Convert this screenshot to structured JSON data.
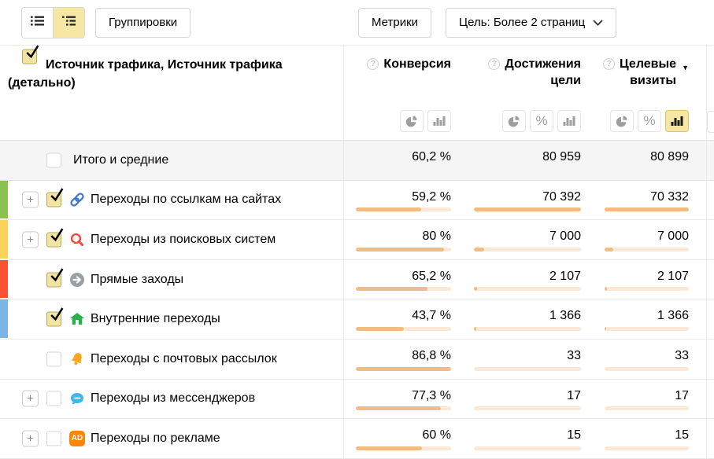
{
  "toolbar": {
    "groupings": "Группировки",
    "metrics": "Метрики",
    "goal_selector": "Цель: Более 2 страниц"
  },
  "icons": {
    "plus": "+",
    "percent": "%",
    "help": "?",
    "sort_desc": "▼",
    "ad_label": "AD"
  },
  "header": {
    "dimension_title": "Источник трафика, Источник трафика (детально)",
    "columns": {
      "conversion": {
        "title": "Конверсия"
      },
      "goals": {
        "title_line1": "Достижения",
        "title_line2": "цели"
      },
      "visits": {
        "title_line1": "Целевые",
        "title_line2": "визиты"
      }
    }
  },
  "colors": {
    "accent_selected": "#f6e7a4",
    "bar_fill": "#f2bd82",
    "bar_track": "#fbe9d5",
    "stripe_green": "#8cc152",
    "stripe_yellow": "#fdd35c",
    "stripe_red": "#fa5232",
    "stripe_blue": "#7db4e6"
  },
  "rows": [
    {
      "label": "Итого и средние",
      "icon": null,
      "stripe": null,
      "conversion": "60,2 %",
      "goals": "80 959",
      "visits": "80 899"
    },
    {
      "label": "Переходы по ссылкам на сайтах",
      "icon": "link-icon",
      "stripe": "#8cc152",
      "conversion": "59,2 %",
      "goals": "70 392",
      "visits": "70 332",
      "conv_fill": 68.2,
      "goal_fill": 100,
      "visit_fill": 100
    },
    {
      "label": "Переходы из поисковых систем",
      "icon": "search-icon",
      "stripe": "#fdd35c",
      "conversion": "80 %",
      "goals": "7 000",
      "visits": "7 000",
      "conv_fill": 92.2,
      "goal_fill": 9.9,
      "visit_fill": 10
    },
    {
      "label": "Прямые заходы",
      "icon": "direct-arrow-icon",
      "stripe": "#fa5232",
      "conversion": "65,2 %",
      "goals": "2 107",
      "visits": "2 107",
      "conv_fill": 75.1,
      "goal_fill": 3,
      "visit_fill": 3
    },
    {
      "label": "Внутренние переходы",
      "icon": "home-icon",
      "stripe": "#7db4e6",
      "conversion": "43,7 %",
      "goals": "1 366",
      "visits": "1 366",
      "conv_fill": 50.3,
      "goal_fill": 1.9,
      "visit_fill": 1.9
    },
    {
      "label": "Переходы с почтовых рассылок",
      "icon": "bell-icon",
      "stripe": null,
      "conversion": "86,8 %",
      "goals": "33",
      "visits": "33",
      "conv_fill": 100,
      "goal_fill": 0,
      "visit_fill": 0
    },
    {
      "label": "Переходы из мессенджеров",
      "icon": "messenger-icon",
      "stripe": null,
      "conversion": "77,3 %",
      "goals": "17",
      "visits": "17",
      "conv_fill": 89.1,
      "goal_fill": 0,
      "visit_fill": 0
    },
    {
      "label": "Переходы по рекламе",
      "icon": "ad-icon",
      "stripe": null,
      "conversion": "60 %",
      "goals": "15",
      "visits": "15",
      "conv_fill": 69.1,
      "goal_fill": 0,
      "visit_fill": 0
    }
  ]
}
